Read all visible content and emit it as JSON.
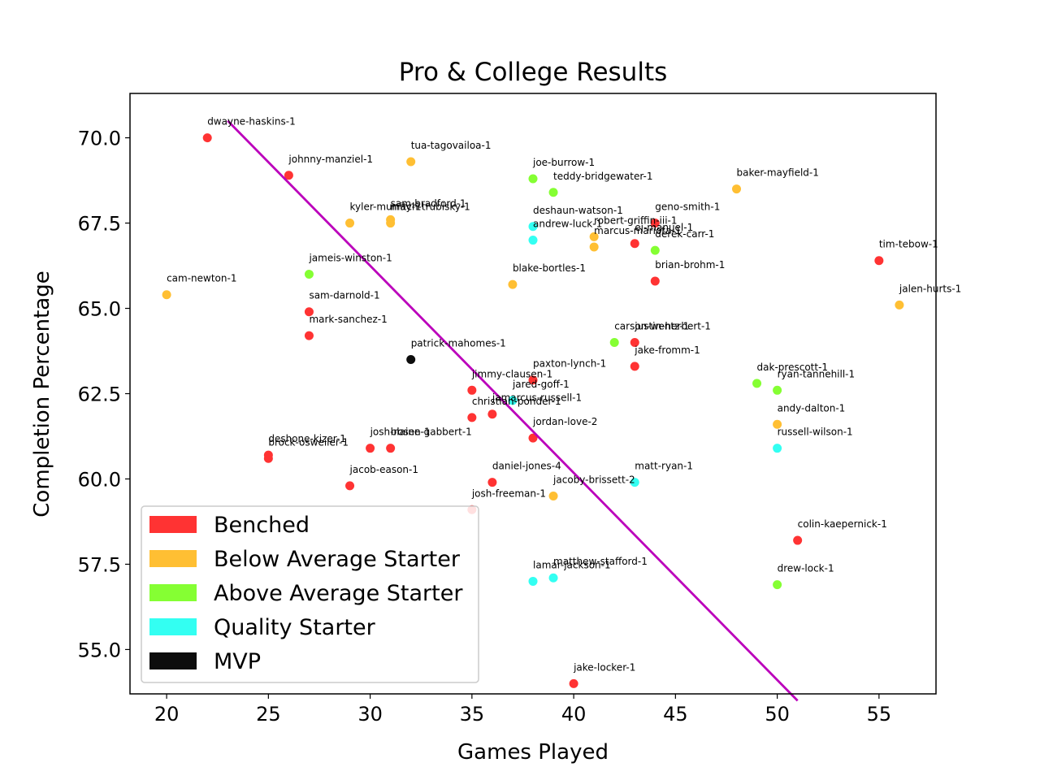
{
  "chart_data": {
    "type": "scatter",
    "title": "Pro & College Results",
    "xlabel": "Games Played",
    "ylabel": "Completion Percentage",
    "xlim": [
      18.2,
      57.8
    ],
    "ylim": [
      53.7,
      71.3
    ],
    "xticks": [
      "20",
      "25",
      "30",
      "35",
      "40",
      "45",
      "50",
      "55"
    ],
    "yticks": [
      "55.0",
      "57.5",
      "60.0",
      "62.5",
      "65.0",
      "67.5",
      "70.0"
    ],
    "grid": false,
    "legend_position": "lower-left",
    "categories": [
      {
        "key": "benched",
        "name": "Benched",
        "color": "#ff3333"
      },
      {
        "key": "below",
        "name": "Below Average Starter",
        "color": "#ffbf33"
      },
      {
        "key": "above",
        "name": "Above Average Starter",
        "color": "#85ff33"
      },
      {
        "key": "quality",
        "name": "Quality Starter",
        "color": "#33fff2"
      },
      {
        "key": "mvp",
        "name": "MVP",
        "color": "#0d0d0d"
      }
    ],
    "trend_line": {
      "color": "#bb00bb",
      "x": [
        23,
        51
      ],
      "y": [
        70.5,
        53.5
      ]
    },
    "points": [
      {
        "label": "dwayne-haskins-1",
        "x": 22,
        "y": 70.0,
        "cat": "benched"
      },
      {
        "label": "johnny-manziel-1",
        "x": 26,
        "y": 68.9,
        "cat": "benched"
      },
      {
        "label": "tua-tagovailoa-1",
        "x": 32,
        "y": 69.3,
        "cat": "below"
      },
      {
        "label": "joe-burrow-1",
        "x": 38,
        "y": 68.8,
        "cat": "above"
      },
      {
        "label": "teddy-bridgewater-1",
        "x": 39,
        "y": 68.4,
        "cat": "above"
      },
      {
        "label": "baker-mayfield-1",
        "x": 48,
        "y": 68.5,
        "cat": "below"
      },
      {
        "label": "sam-bradford-1",
        "x": 31,
        "y": 67.6,
        "cat": "below"
      },
      {
        "label": "mitch-trubisky-1",
        "x": 31,
        "y": 67.5,
        "cat": "below"
      },
      {
        "label": "kyler-murray-1",
        "x": 29,
        "y": 67.5,
        "cat": "below"
      },
      {
        "label": "deshaun-watson-1",
        "x": 38,
        "y": 67.4,
        "cat": "quality"
      },
      {
        "label": "andrew-luck-1",
        "x": 38,
        "y": 67.0,
        "cat": "quality"
      },
      {
        "label": "robert-griffin-iii-1",
        "x": 41,
        "y": 67.1,
        "cat": "below"
      },
      {
        "label": "marcus-mariota-1",
        "x": 41,
        "y": 66.8,
        "cat": "below"
      },
      {
        "label": "geno-smith-1",
        "x": 44,
        "y": 67.5,
        "cat": "benched"
      },
      {
        "label": "ej-manuel-1",
        "x": 43,
        "y": 66.9,
        "cat": "benched"
      },
      {
        "label": "derek-carr-1",
        "x": 44,
        "y": 66.7,
        "cat": "above"
      },
      {
        "label": "tim-tebow-1",
        "x": 55,
        "y": 66.4,
        "cat": "benched"
      },
      {
        "label": "jameis-winston-1",
        "x": 27,
        "y": 66.0,
        "cat": "above"
      },
      {
        "label": "cam-newton-1",
        "x": 20,
        "y": 65.4,
        "cat": "below"
      },
      {
        "label": "blake-bortles-1",
        "x": 37,
        "y": 65.7,
        "cat": "below"
      },
      {
        "label": "brian-brohm-1",
        "x": 44,
        "y": 65.8,
        "cat": "benched"
      },
      {
        "label": "jalen-hurts-1",
        "x": 56,
        "y": 65.1,
        "cat": "below"
      },
      {
        "label": "sam-darnold-1",
        "x": 27,
        "y": 64.9,
        "cat": "benched"
      },
      {
        "label": "mark-sanchez-1",
        "x": 27,
        "y": 64.2,
        "cat": "benched"
      },
      {
        "label": "carson-wentz-1",
        "x": 42,
        "y": 64.0,
        "cat": "above"
      },
      {
        "label": "justin-herbert-1",
        "x": 43,
        "y": 64.0,
        "cat": "benched"
      },
      {
        "label": "patrick-mahomes-1",
        "x": 32,
        "y": 63.5,
        "cat": "mvp"
      },
      {
        "label": "paxton-lynch-1",
        "x": 38,
        "y": 62.9,
        "cat": "benched"
      },
      {
        "label": "jake-fromm-1",
        "x": 43,
        "y": 63.3,
        "cat": "benched"
      },
      {
        "label": "jimmy-clausen-1",
        "x": 35,
        "y": 62.6,
        "cat": "benched"
      },
      {
        "label": "jared-goff-1",
        "x": 37,
        "y": 62.3,
        "cat": "quality"
      },
      {
        "label": "dak-prescott-1",
        "x": 49,
        "y": 62.8,
        "cat": "above"
      },
      {
        "label": "ryan-tannehill-1",
        "x": 50,
        "y": 62.6,
        "cat": "above"
      },
      {
        "label": "christian-ponder-1",
        "x": 35,
        "y": 61.8,
        "cat": "benched"
      },
      {
        "label": "jamarcus-russell-1",
        "x": 36,
        "y": 61.9,
        "cat": "benched"
      },
      {
        "label": "andy-dalton-1",
        "x": 50,
        "y": 61.6,
        "cat": "below"
      },
      {
        "label": "jordan-love-2",
        "x": 38,
        "y": 61.2,
        "cat": "benched"
      },
      {
        "label": "russell-wilson-1",
        "x": 50,
        "y": 60.9,
        "cat": "quality"
      },
      {
        "label": "deshone-kizer-1",
        "x": 25,
        "y": 60.7,
        "cat": "benched"
      },
      {
        "label": "brock-osweiler-1",
        "x": 25,
        "y": 60.6,
        "cat": "benched"
      },
      {
        "label": "josh-rosen-1",
        "x": 30,
        "y": 60.9,
        "cat": "benched"
      },
      {
        "label": "blaine-gabbert-1",
        "x": 31,
        "y": 60.9,
        "cat": "benched"
      },
      {
        "label": "jacob-eason-1",
        "x": 29,
        "y": 59.8,
        "cat": "benched"
      },
      {
        "label": "daniel-jones-4",
        "x": 36,
        "y": 59.9,
        "cat": "benched"
      },
      {
        "label": "matt-ryan-1",
        "x": 43,
        "y": 59.9,
        "cat": "quality"
      },
      {
        "label": "jacoby-brissett-2",
        "x": 39,
        "y": 59.5,
        "cat": "below"
      },
      {
        "label": "josh-freeman-1",
        "x": 35,
        "y": 59.1,
        "cat": "benched"
      },
      {
        "label": "colin-kaepernick-1",
        "x": 51,
        "y": 58.2,
        "cat": "benched"
      },
      {
        "label": "lamar-jackson-1",
        "x": 38,
        "y": 57.0,
        "cat": "quality"
      },
      {
        "label": "matthew-stafford-1",
        "x": 39,
        "y": 57.1,
        "cat": "quality"
      },
      {
        "label": "drew-lock-1",
        "x": 50,
        "y": 56.9,
        "cat": "above"
      },
      {
        "label": "jake-locker-1",
        "x": 40,
        "y": 54.0,
        "cat": "benched"
      }
    ]
  }
}
